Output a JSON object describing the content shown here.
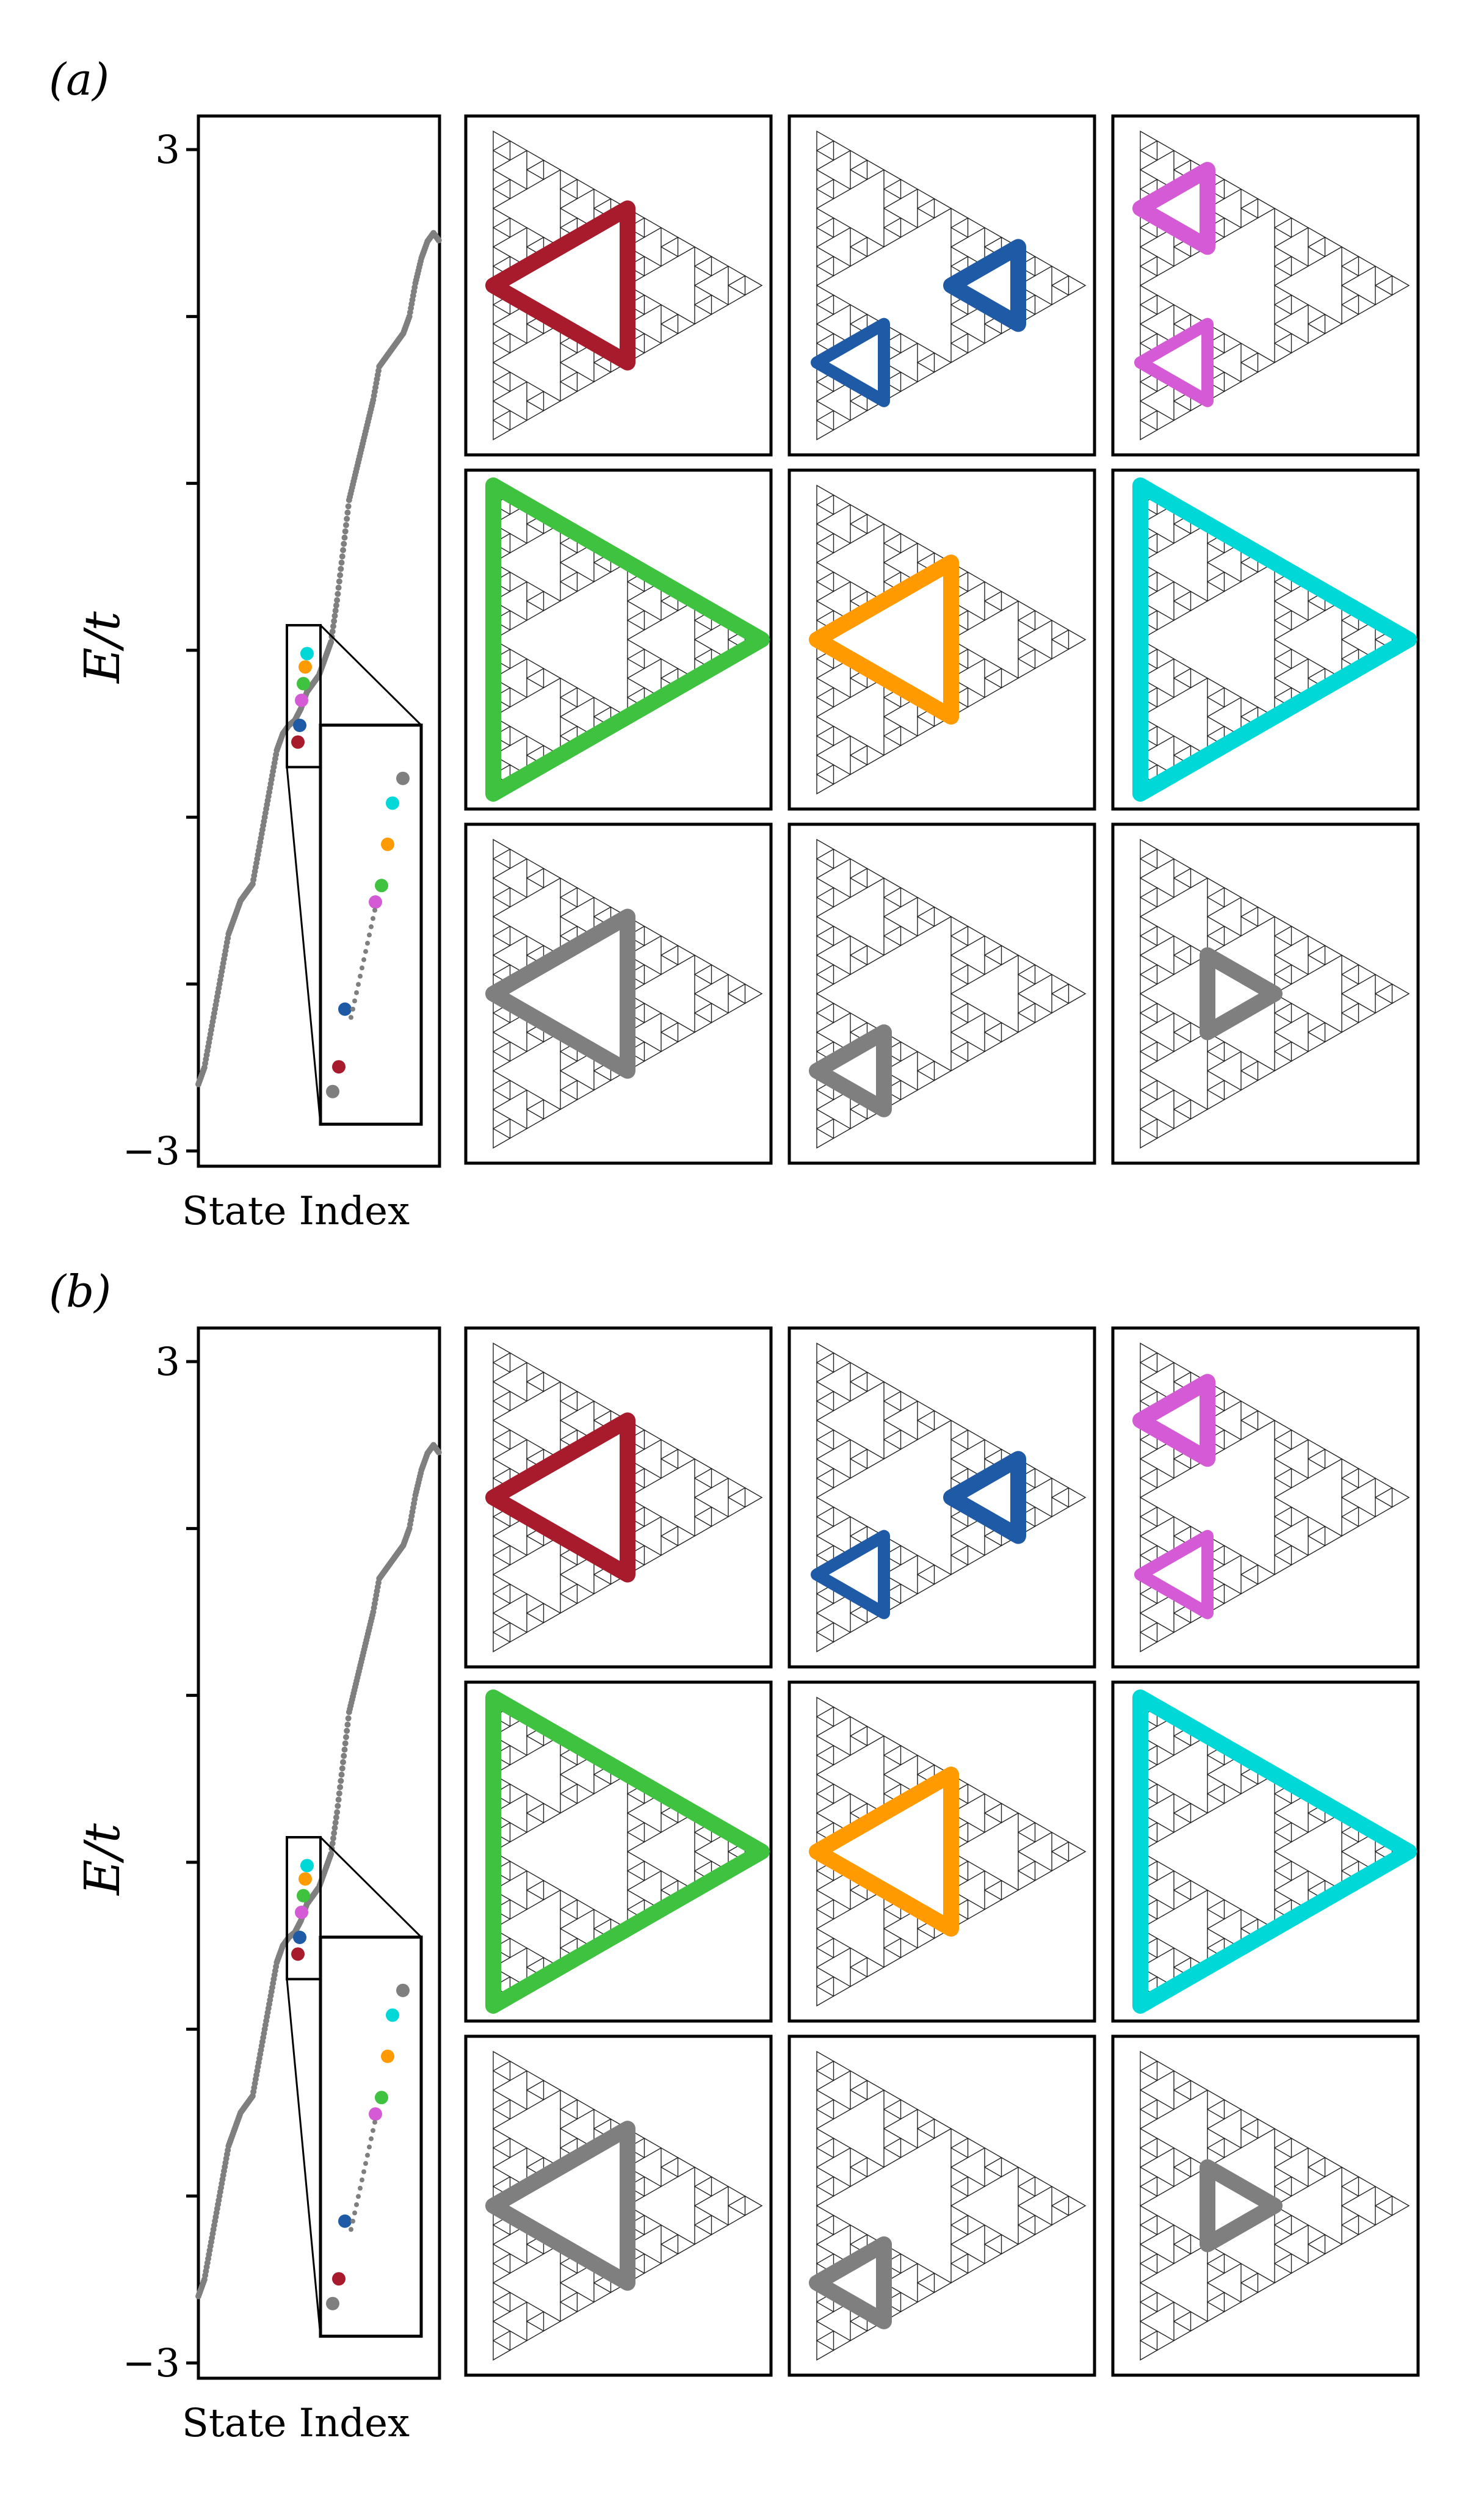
{
  "figure": {
    "panels": [
      {
        "label": "(a)",
        "spectrum": {
          "ylabel": "E/t",
          "xlabel": "State Index",
          "y_ticks": [
            3,
            2,
            1,
            0,
            -1,
            -2,
            -3
          ],
          "y_tick_labels": [
            "3",
            "",
            "",
            "",
            "",
            "",
            "−3"
          ],
          "inset": "zoom-in on the states near E = -0.3 to -0.1"
        },
        "grid_colors": [
          "#a71b2c",
          "#1f5aa6",
          "#d55ad6",
          "#3fc23f",
          "#ff9a00",
          "#00d8d8",
          "#7f7f7f",
          "#7f7f7f",
          "#7f7f7f"
        ]
      },
      {
        "label": "(b)",
        "spectrum": {
          "ylabel": "E/t",
          "xlabel": "State Index",
          "y_ticks": [
            3,
            2,
            1,
            0,
            -1,
            -2,
            -3
          ],
          "y_tick_labels": [
            "3",
            "",
            "",
            "",
            "",
            "",
            "−3"
          ],
          "inset": "zoom-in on the states near E = -0.3 to -0.1"
        },
        "grid_colors": [
          "#a71b2c",
          "#1f5aa6",
          "#d55ad6",
          "#3fc23f",
          "#ff9a00",
          "#00d8d8",
          "#7f7f7f",
          "#7f7f7f",
          "#7f7f7f"
        ]
      }
    ]
  },
  "chart_data": [
    {
      "type": "scatter",
      "title": "",
      "xlabel": "State Index",
      "ylabel": "E/t",
      "ylim": [
        -3,
        3
      ],
      "y_ticks": [
        -3,
        -2,
        -1,
        0,
        1,
        2,
        3
      ],
      "series": [
        {
          "name": "",
          "color": "#7f7f7f",
          "x": [
            0,
            10,
            20,
            30,
            40,
            50,
            60,
            70,
            80,
            90,
            100,
            110,
            120,
            130,
            140,
            150,
            160,
            170,
            180,
            190,
            200,
            210,
            220,
            230,
            240,
            250,
            260,
            270,
            280,
            290,
            300,
            310,
            320,
            330,
            340,
            350,
            360,
            370,
            380,
            390,
            400
          ],
          "y": [
            -2.6,
            -2.5,
            -2.3,
            -2.1,
            -1.9,
            -1.7,
            -1.6,
            -1.5,
            -1.45,
            -1.4,
            -1.2,
            -1.0,
            -0.8,
            -0.6,
            -0.5,
            -0.45,
            -0.42,
            -0.35,
            -0.25,
            -0.2,
            -0.15,
            -0.05,
            0.05,
            0.3,
            0.6,
            0.9,
            1.05,
            1.2,
            1.35,
            1.5,
            1.7,
            1.75,
            1.8,
            1.85,
            1.9,
            2.0,
            2.2,
            2.35,
            2.45,
            2.5,
            2.45
          ]
        }
      ],
      "highlighted_states": [
        {
          "color": "#a71b2c",
          "E": -0.55
        },
        {
          "color": "#1f5aa6",
          "E": -0.45
        },
        {
          "color": "#d55ad6",
          "E": -0.3
        },
        {
          "color": "#3fc23f",
          "E": -0.2
        },
        {
          "color": "#ff9a00",
          "E": -0.1
        },
        {
          "color": "#00d8d8",
          "E": -0.02
        }
      ]
    },
    {
      "type": "scatter",
      "title": "",
      "xlabel": "State Index",
      "ylabel": "E/t",
      "ylim": [
        -3,
        3
      ],
      "y_ticks": [
        -3,
        -2,
        -1,
        0,
        1,
        2,
        3
      ],
      "series": [
        {
          "name": "",
          "color": "#7f7f7f",
          "x": [
            0,
            10,
            20,
            30,
            40,
            50,
            60,
            70,
            80,
            90,
            100,
            110,
            120,
            130,
            140,
            150,
            160,
            170,
            180,
            190,
            200,
            210,
            220,
            230,
            240,
            250,
            260,
            270,
            280,
            290,
            300,
            310,
            320,
            330,
            340,
            350,
            360,
            370,
            380,
            390,
            400
          ],
          "y": [
            -2.6,
            -2.5,
            -2.3,
            -2.1,
            -1.9,
            -1.7,
            -1.6,
            -1.5,
            -1.45,
            -1.4,
            -1.2,
            -1.0,
            -0.8,
            -0.6,
            -0.5,
            -0.45,
            -0.42,
            -0.35,
            -0.25,
            -0.2,
            -0.15,
            -0.05,
            0.05,
            0.3,
            0.6,
            0.9,
            1.05,
            1.2,
            1.35,
            1.5,
            1.7,
            1.75,
            1.8,
            1.85,
            1.9,
            2.0,
            2.2,
            2.35,
            2.45,
            2.5,
            2.45
          ]
        }
      ],
      "highlighted_states": [
        {
          "color": "#a71b2c",
          "E": -0.55
        },
        {
          "color": "#1f5aa6",
          "E": -0.45
        },
        {
          "color": "#d55ad6",
          "E": -0.3
        },
        {
          "color": "#3fc23f",
          "E": -0.2
        },
        {
          "color": "#ff9a00",
          "E": -0.1
        },
        {
          "color": "#00d8d8",
          "E": -0.02
        }
      ]
    }
  ]
}
